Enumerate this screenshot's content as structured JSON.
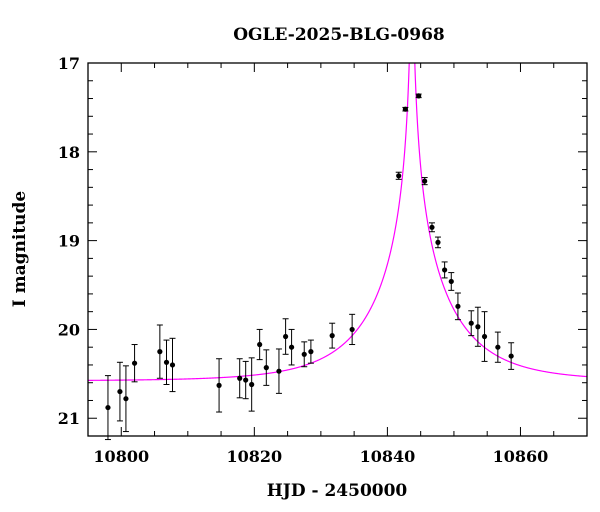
{
  "chart_data": {
    "type": "scatter",
    "title": "OGLE-2025-BLG-0968",
    "xlabel": "HJD - 2450000",
    "ylabel": "I magnitude",
    "xlim": [
      10795,
      10870
    ],
    "ylim": [
      21.2,
      17.0
    ],
    "y_inverted": true,
    "x_ticks": [
      10800,
      10820,
      10840,
      10860
    ],
    "y_ticks": [
      17,
      18,
      19,
      20,
      21
    ],
    "x_tick_labels": [
      "10800",
      "10820",
      "10840",
      "10860"
    ],
    "y_tick_labels": [
      "17",
      "18",
      "19",
      "20",
      "21"
    ],
    "grid": false,
    "colors": {
      "points": "#000000",
      "model": "#ff00ff",
      "axes": "#000000"
    },
    "series": [
      {
        "type": "scatter_errorbar",
        "points": [
          {
            "x": 10798.0,
            "y": 20.88,
            "err": 0.36
          },
          {
            "x": 10799.8,
            "y": 20.7,
            "err": 0.33
          },
          {
            "x": 10800.7,
            "y": 20.78,
            "err": 0.37
          },
          {
            "x": 10802.0,
            "y": 20.38,
            "err": 0.21
          },
          {
            "x": 10805.8,
            "y": 20.25,
            "err": 0.3
          },
          {
            "x": 10806.8,
            "y": 20.37,
            "err": 0.25
          },
          {
            "x": 10807.7,
            "y": 20.4,
            "err": 0.3
          },
          {
            "x": 10814.7,
            "y": 20.63,
            "err": 0.3
          },
          {
            "x": 10817.8,
            "y": 20.55,
            "err": 0.22
          },
          {
            "x": 10818.7,
            "y": 20.57,
            "err": 0.21
          },
          {
            "x": 10819.6,
            "y": 20.62,
            "err": 0.3
          },
          {
            "x": 10820.8,
            "y": 20.17,
            "err": 0.17
          },
          {
            "x": 10821.8,
            "y": 20.43,
            "err": 0.2
          },
          {
            "x": 10823.7,
            "y": 20.47,
            "err": 0.25
          },
          {
            "x": 10824.7,
            "y": 20.08,
            "err": 0.2
          },
          {
            "x": 10825.6,
            "y": 20.2,
            "err": 0.2
          },
          {
            "x": 10827.5,
            "y": 20.28,
            "err": 0.14
          },
          {
            "x": 10828.5,
            "y": 20.25,
            "err": 0.13
          },
          {
            "x": 10831.7,
            "y": 20.07,
            "err": 0.14
          },
          {
            "x": 10834.7,
            "y": 20.0,
            "err": 0.17
          },
          {
            "x": 10841.7,
            "y": 18.27,
            "err": 0.04
          },
          {
            "x": 10842.7,
            "y": 17.52,
            "err": 0.02
          },
          {
            "x": 10844.7,
            "y": 17.37,
            "err": 0.02
          },
          {
            "x": 10845.6,
            "y": 18.33,
            "err": 0.04
          },
          {
            "x": 10846.7,
            "y": 18.85,
            "err": 0.05
          },
          {
            "x": 10847.6,
            "y": 19.02,
            "err": 0.06
          },
          {
            "x": 10848.6,
            "y": 19.33,
            "err": 0.09
          },
          {
            "x": 10849.6,
            "y": 19.46,
            "err": 0.1
          },
          {
            "x": 10850.6,
            "y": 19.74,
            "err": 0.15
          },
          {
            "x": 10852.6,
            "y": 19.93,
            "err": 0.14
          },
          {
            "x": 10853.6,
            "y": 19.97,
            "err": 0.22
          },
          {
            "x": 10854.6,
            "y": 20.08,
            "err": 0.28
          },
          {
            "x": 10856.6,
            "y": 20.2,
            "err": 0.17
          },
          {
            "x": 10858.6,
            "y": 20.3,
            "err": 0.15
          }
        ]
      },
      {
        "type": "model_curve",
        "model": {
          "baseline_mag": 20.58,
          "t0": 10843.7,
          "u0": 0.012,
          "tE": 12.0
        }
      }
    ]
  }
}
